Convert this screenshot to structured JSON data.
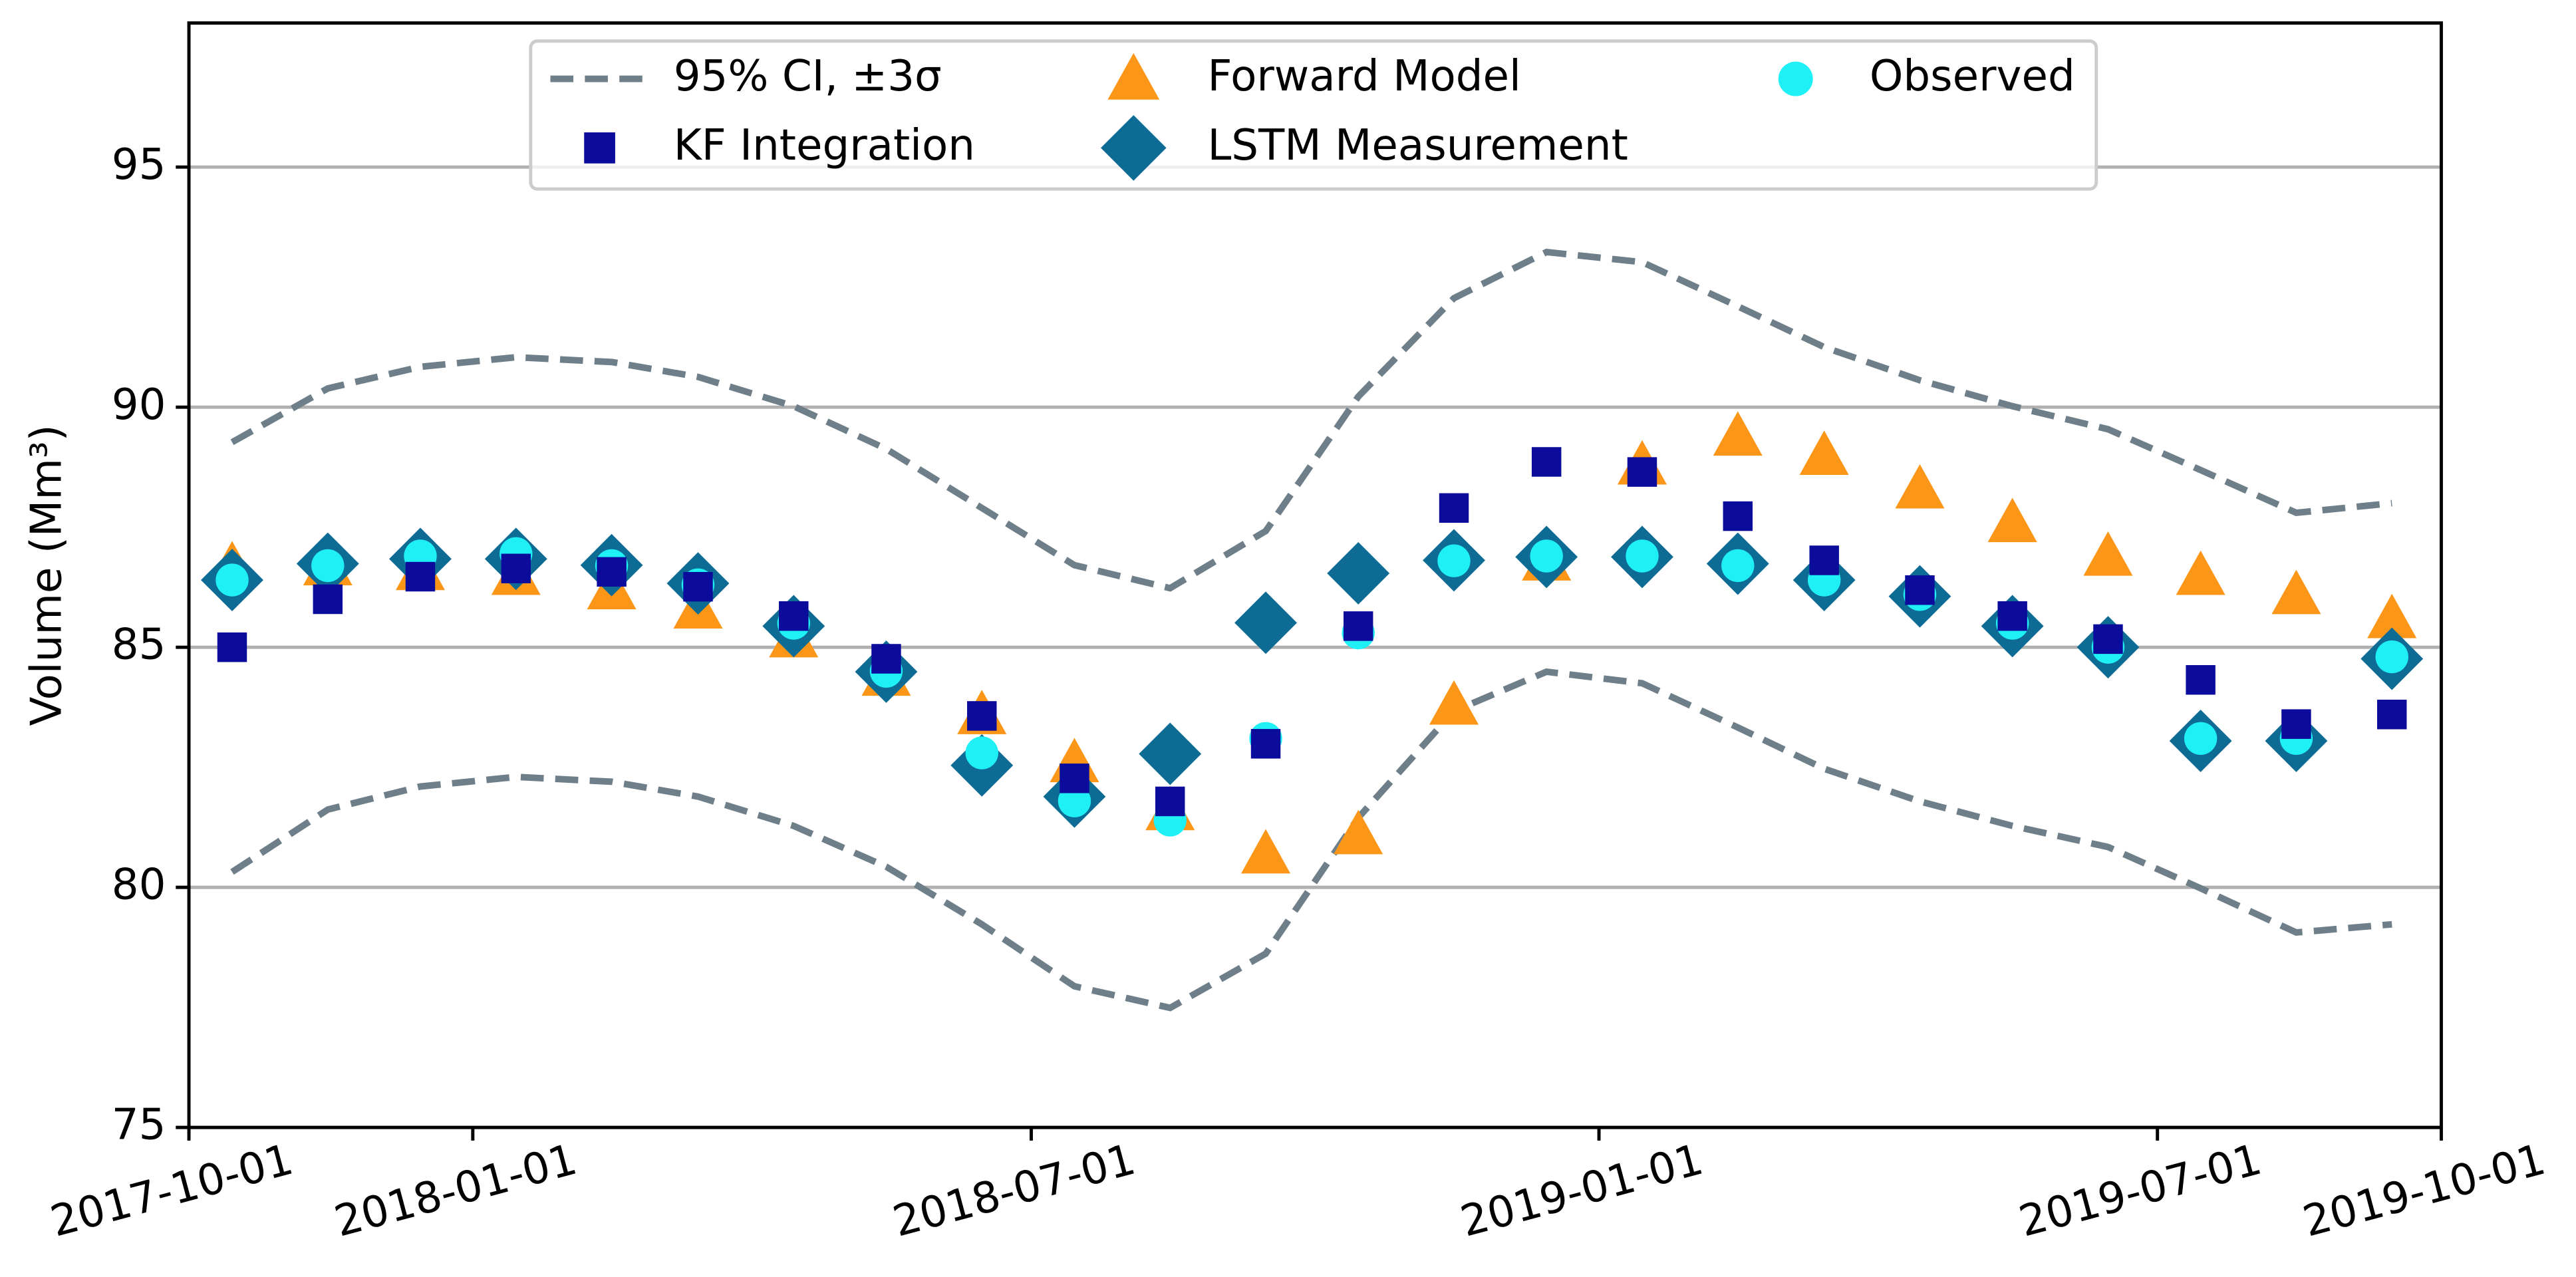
{
  "chart_data": {
    "type": "scatter",
    "y_label": "Volume (Mm³)",
    "x": [
      "2017-10-15",
      "2017-11-15",
      "2017-12-15",
      "2018-01-15",
      "2018-02-15",
      "2018-03-15",
      "2018-04-15",
      "2018-05-15",
      "2018-06-15",
      "2018-07-15",
      "2018-08-15",
      "2018-09-15",
      "2018-10-15",
      "2018-11-15",
      "2018-12-15",
      "2019-01-15",
      "2019-02-15",
      "2019-03-15",
      "2019-04-15",
      "2019-05-15",
      "2019-06-15",
      "2019-07-15",
      "2019-08-15",
      "2019-09-15"
    ],
    "xlim": [
      "2017-10-01",
      "2019-10-01"
    ],
    "xticks": [
      "2017-10-01",
      "2018-01-01",
      "2018-07-01",
      "2019-01-01",
      "2019-07-01",
      "2019-10-01"
    ],
    "ylim": [
      75,
      98
    ],
    "yticks": [
      75,
      80,
      85,
      90,
      95
    ],
    "grid": true,
    "legend": "upper center",
    "series": [
      {
        "name": "95% CI, ±3σ",
        "marker": "dashed-line",
        "color": "#6f7f89",
        "upper": [
          89.27,
          90.39,
          90.84,
          91.04,
          90.94,
          90.63,
          90.02,
          89.13,
          87.9,
          86.71,
          86.23,
          87.42,
          90.22,
          92.27,
          93.23,
          93.02,
          92.1,
          91.25,
          90.56,
          90.02,
          89.54,
          88.69,
          87.8,
          88.0
        ],
        "lower": [
          80.32,
          81.62,
          82.1,
          82.3,
          82.2,
          81.89,
          81.28,
          80.43,
          79.23,
          77.94,
          77.49,
          78.62,
          81.45,
          83.67,
          84.49,
          84.25,
          83.33,
          82.47,
          81.79,
          81.28,
          80.84,
          79.98,
          79.06,
          79.23
        ]
      },
      {
        "name": "KF Integration",
        "marker": "square",
        "color": "#0c0c9c",
        "values": [
          85.0,
          86.0,
          86.47,
          86.64,
          86.57,
          86.26,
          85.65,
          84.76,
          83.57,
          82.27,
          81.79,
          82.99,
          85.44,
          87.9,
          88.86,
          88.65,
          87.73,
          86.81,
          86.19,
          85.65,
          85.17,
          84.32,
          83.4,
          83.6
        ]
      },
      {
        "name": "Forward Model",
        "marker": "triangle",
        "color": "#fb9619",
        "values": [
          86.7,
          86.7,
          86.6,
          86.5,
          86.2,
          85.8,
          85.2,
          84.4,
          83.6,
          82.6,
          81.6,
          80.7,
          81.1,
          83.8,
          86.8,
          88.8,
          89.4,
          89.0,
          88.3,
          87.6,
          86.9,
          86.5,
          86.1,
          85.6
        ]
      },
      {
        "name": "LSTM Measurement",
        "marker": "diamond",
        "color": "#0e6c94",
        "values": [
          86.4,
          86.74,
          86.84,
          86.84,
          86.71,
          86.33,
          85.44,
          84.49,
          82.54,
          81.89,
          82.78,
          85.51,
          86.54,
          86.81,
          86.88,
          86.88,
          86.74,
          86.4,
          86.06,
          85.44,
          85.0,
          83.05,
          83.05,
          84.76
        ]
      },
      {
        "name": "Observed",
        "marker": "circle",
        "color": "#1ff0f5",
        "values": [
          86.4,
          86.7,
          86.9,
          86.95,
          86.7,
          86.3,
          85.5,
          84.5,
          82.8,
          81.8,
          81.4,
          83.1,
          85.3,
          86.8,
          86.9,
          86.9,
          86.7,
          86.4,
          86.1,
          85.5,
          85.0,
          83.1,
          83.1,
          84.8
        ]
      }
    ]
  }
}
